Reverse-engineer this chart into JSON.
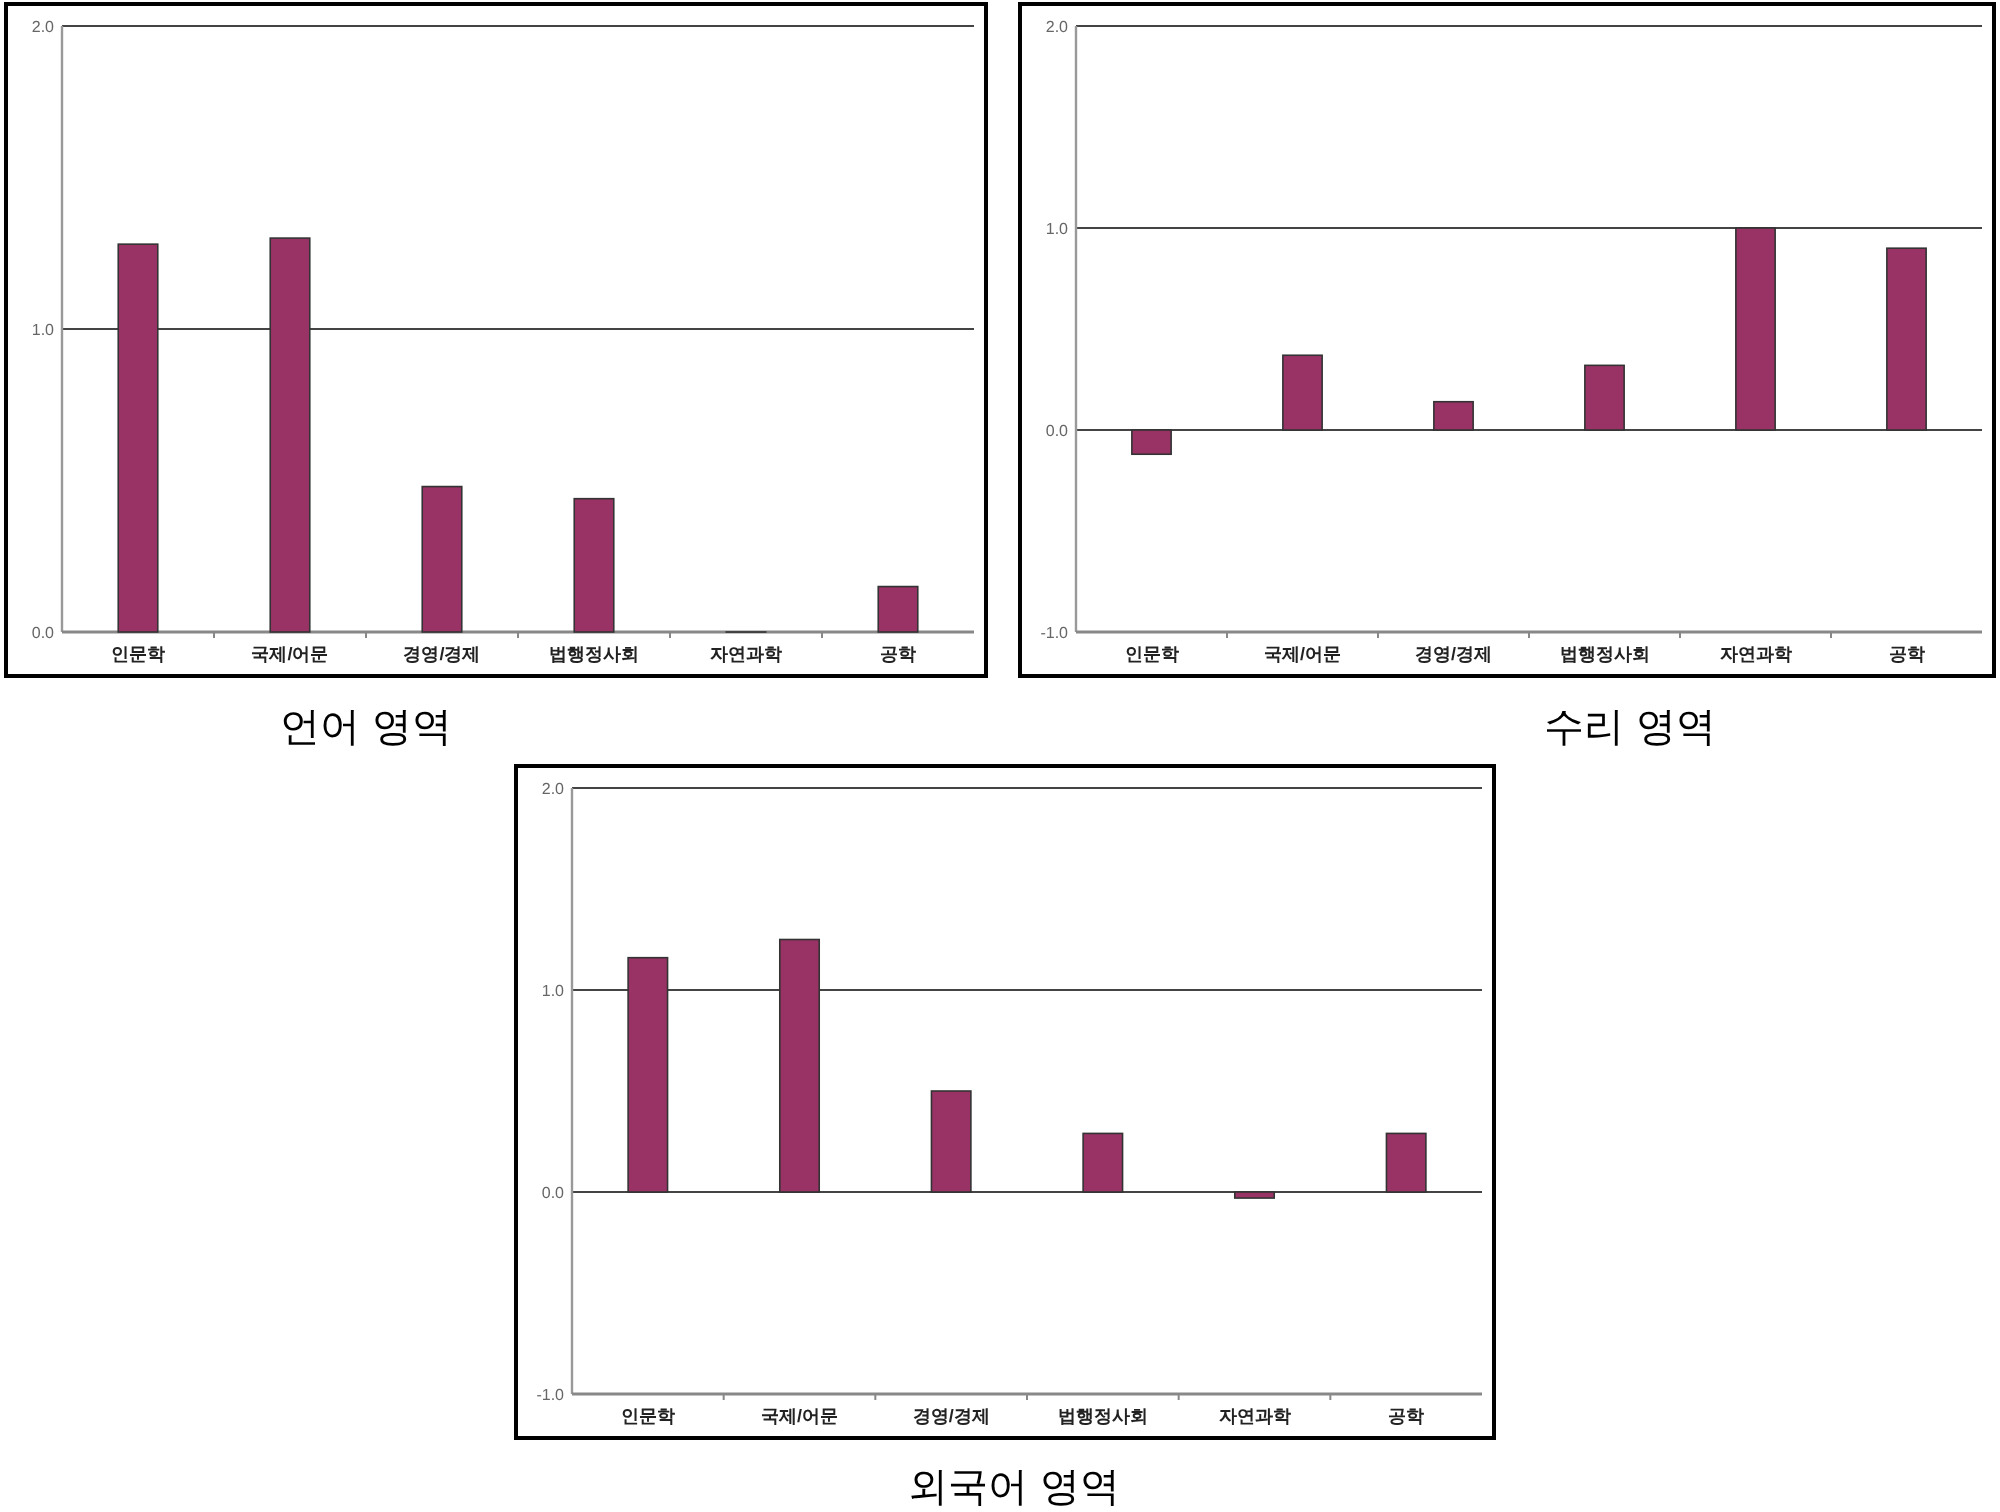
{
  "chart_data": [
    {
      "type": "bar",
      "title": "언어 영역",
      "categories": [
        "인문학",
        "국제/어문",
        "경영/경제",
        "법행정사회",
        "자연과학",
        "공학"
      ],
      "color": "#993366",
      "values": [
        1.28,
        1.3,
        0.48,
        0.44,
        0,
        0.15
      ],
      "ylim": [
        0,
        2
      ],
      "yticks": [
        {
          "value": 0,
          "label": "0.0"
        },
        {
          "value": 1,
          "label": "1.0"
        },
        {
          "value": 2,
          "label": "2.0"
        }
      ],
      "grid": "y"
    },
    {
      "type": "bar",
      "title": "수리 영역",
      "categories": [
        "인문학",
        "국제/어문",
        "경영/경제",
        "법행정사회",
        "자연과학",
        "공학"
      ],
      "color": "#993366",
      "values": [
        -0.12,
        0.37,
        0.14,
        0.32,
        1.0,
        0.9
      ],
      "ylim": [
        -1,
        2
      ],
      "yticks": [
        {
          "value": -1,
          "label": "-1.0"
        },
        {
          "value": 0,
          "label": "0.0"
        },
        {
          "value": 1,
          "label": "1.0"
        },
        {
          "value": 2,
          "label": "2.0"
        }
      ],
      "grid": "y"
    },
    {
      "type": "bar",
      "title": "외국어 영역",
      "categories": [
        "인문학",
        "국제/어문",
        "경영/경제",
        "법행정사회",
        "자연과학",
        "공학"
      ],
      "color": "#993366",
      "values": [
        1.16,
        1.25,
        0.5,
        0.29,
        -0.03,
        0.29
      ],
      "ylim": [
        -1,
        2
      ],
      "yticks": [
        {
          "value": -1,
          "label": "-1.0"
        },
        {
          "value": 0,
          "label": "0.0"
        },
        {
          "value": 1,
          "label": "1.0"
        },
        {
          "value": 2,
          "label": "2.0"
        }
      ],
      "grid": "y"
    }
  ]
}
